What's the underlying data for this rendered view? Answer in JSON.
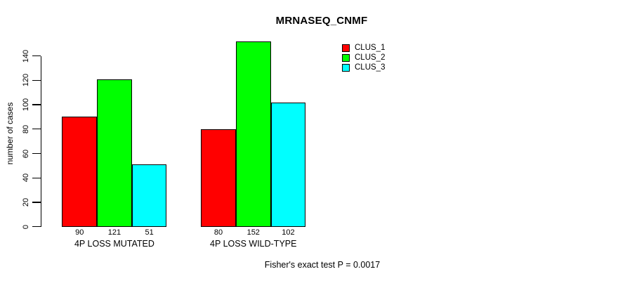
{
  "chart_data": {
    "type": "bar",
    "title": "MRNASEQ_CNMF",
    "ylabel": "number of cases",
    "xlabel": "",
    "categories": [
      "4P LOSS MUTATED",
      "4P LOSS WILD-TYPE"
    ],
    "series": [
      {
        "name": "CLUS_1",
        "color": "#ff0000",
        "values": [
          90,
          80
        ]
      },
      {
        "name": "CLUS_2",
        "color": "#00ff00",
        "values": [
          121,
          152
        ]
      },
      {
        "name": "CLUS_3",
        "color": "#00ffff",
        "values": [
          51,
          102
        ]
      }
    ],
    "yticks": [
      0,
      20,
      40,
      60,
      80,
      100,
      120,
      140
    ],
    "ylim": [
      0,
      152
    ],
    "grid": false,
    "bar_value_labels_shown": true,
    "legend": {
      "entries": [
        "CLUS_1",
        "CLUS_2",
        "CLUS_3"
      ],
      "colors": [
        "#ff0000",
        "#00ff00",
        "#00ffff"
      ],
      "position": "inside-top-right"
    },
    "annotation": "Fisher's exact test P = 0.0017"
  }
}
